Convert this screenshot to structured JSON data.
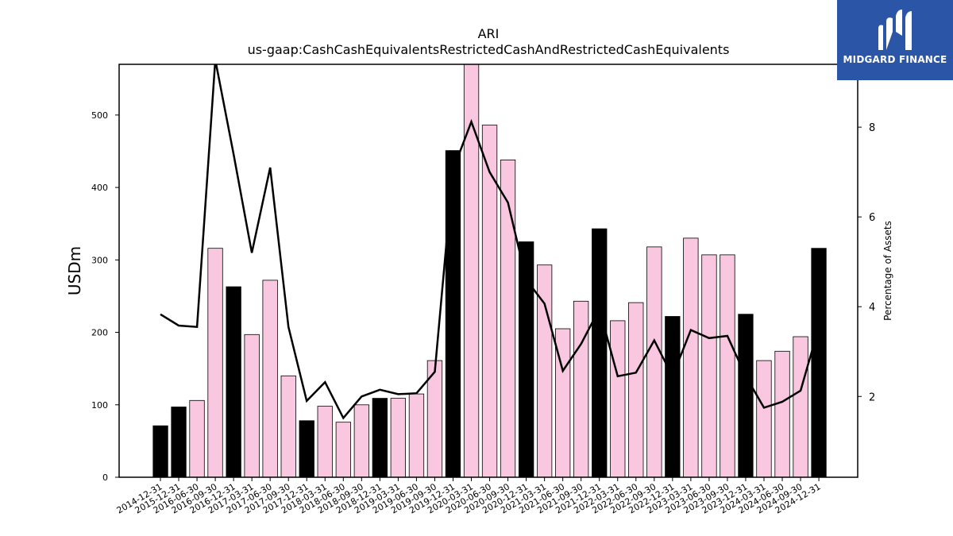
{
  "brand": {
    "name": "MIDGARD FINANCE",
    "bg_color": "#2b56a8",
    "icon": "midgard-m-logo-icon"
  },
  "chart_data": {
    "type": "bar",
    "title": "ARI",
    "subtitle": "us-gaap:CashCashEquivalentsRestrictedCashAndRestrictedCashEquivalents",
    "ylabel": "USDm",
    "y2label": "Percentage of Assets",
    "ylim": [
      0,
      570
    ],
    "y2lim": [
      0.2,
      9.4
    ],
    "yticks": [
      0,
      100,
      200,
      300,
      400,
      500
    ],
    "y2ticks": [
      2,
      4,
      6,
      8
    ],
    "colors": {
      "q4_bar": "#000000",
      "other_bar": "#f9c8e0",
      "line": "#000000"
    },
    "categories": [
      "2014-12-31",
      "2015-12-31",
      "2016-06-30",
      "2016-09-30",
      "2016-12-31",
      "2017-03-31",
      "2017-06-30",
      "2017-09-30",
      "2017-12-31",
      "2018-03-31",
      "2018-06-30",
      "2018-09-30",
      "2018-12-31",
      "2019-03-31",
      "2019-06-30",
      "2019-09-30",
      "2019-12-31",
      "2020-03-31",
      "2020-06-30",
      "2020-09-30",
      "2020-12-31",
      "2021-03-31",
      "2021-06-30",
      "2021-09-30",
      "2021-12-31",
      "2022-03-31",
      "2022-06-30",
      "2022-09-30",
      "2022-12-31",
      "2023-03-31",
      "2023-06-30",
      "2023-09-30",
      "2023-12-31",
      "2024-03-31",
      "2024-06-30",
      "2024-09-30",
      "2024-12-31"
    ],
    "series": [
      {
        "kind": "bar",
        "axis": "left",
        "values": [
          71,
          97,
          106,
          316,
          263,
          197,
          272,
          140,
          78,
          98,
          76,
          100,
          109,
          109,
          115,
          161,
          451,
          570,
          486,
          438,
          325,
          293,
          205,
          243,
          343,
          216,
          241,
          318,
          222,
          330,
          307,
          307,
          225,
          161,
          174,
          194,
          316
        ]
      },
      {
        "kind": "line",
        "axis": "right",
        "values": [
          3.83,
          3.58,
          3.55,
          9.5,
          7.4,
          5.2,
          7.1,
          3.55,
          1.9,
          2.32,
          1.52,
          2.0,
          2.15,
          2.05,
          2.07,
          2.55,
          7.05,
          8.12,
          7.0,
          6.32,
          4.6,
          4.07,
          2.57,
          3.17,
          3.95,
          2.45,
          2.53,
          3.25,
          2.45,
          3.48,
          3.3,
          3.35,
          2.45,
          1.75,
          1.88,
          2.13,
          3.55
        ]
      }
    ]
  }
}
